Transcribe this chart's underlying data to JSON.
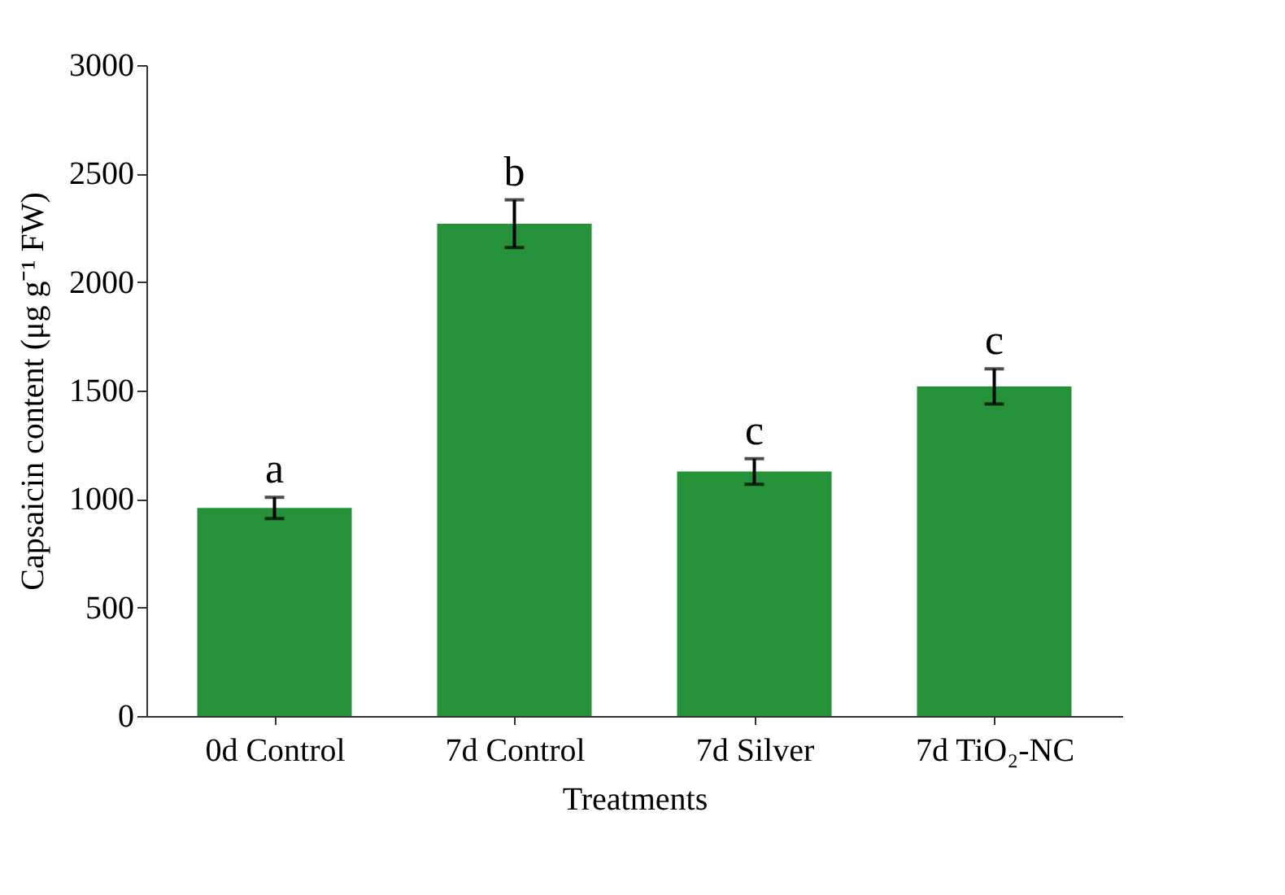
{
  "chart_data": {
    "type": "bar",
    "xlabel": "Treatments",
    "ylabel": "Capsaicin content (μg g⁻¹ FW)",
    "categories": [
      "0d Control",
      "7d Control",
      "7d Silver",
      "7d TiO₂-NC"
    ],
    "values": [
      959,
      2269,
      1127,
      1519
    ],
    "errors": [
      49,
      110,
      59,
      81
    ],
    "color": "#25923a",
    "ylim": [
      0,
      3000
    ],
    "yticks": [
      0,
      500,
      1000,
      1500,
      2000,
      2500,
      3000
    ],
    "grid": false,
    "annotations": [
      {
        "text": "a",
        "x": "0d Control",
        "y": 1008
      },
      {
        "text": "b",
        "x": "7d Control",
        "y": 2379
      },
      {
        "text": "c",
        "x": "7d Silver",
        "y": 1186
      },
      {
        "text": "c",
        "x": "7d TiO₂-NC",
        "y": 1600
      }
    ]
  }
}
